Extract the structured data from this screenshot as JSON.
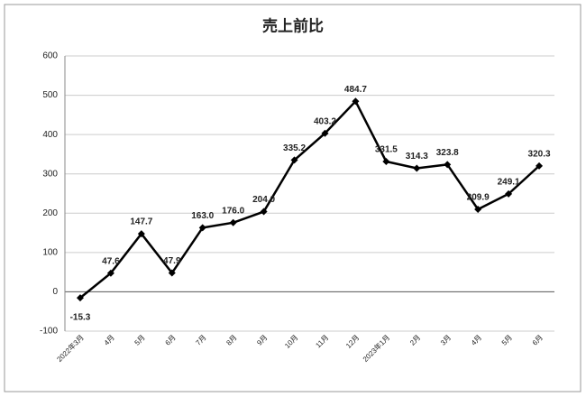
{
  "chart_data": {
    "type": "line",
    "title": "売上前比",
    "categories": [
      "2022年3月",
      "4月",
      "5月",
      "6月",
      "7月",
      "8月",
      "9月",
      "10月",
      "11月",
      "12月",
      "2023年1月",
      "2月",
      "3月",
      "4月",
      "5月",
      "6月"
    ],
    "values": [
      -15.3,
      47.6,
      147.7,
      47.9,
      163.0,
      176.0,
      204.0,
      335.2,
      403.2,
      484.7,
      331.5,
      314.3,
      323.8,
      209.9,
      249.1,
      320.3
    ],
    "value_labels": [
      "-15.3",
      "47.6",
      "147.7",
      "47.9",
      "163.0",
      "176.0",
      "204.0",
      "335.2",
      "403.2",
      "484.7",
      "331.5",
      "314.3",
      "323.8",
      "209.9",
      "249.1",
      "320.3"
    ],
    "color": "#000000",
    "ylim": [
      -100,
      600
    ],
    "yticks": [
      -100,
      0,
      100,
      200,
      300,
      400,
      500,
      600
    ],
    "grid": true
  }
}
